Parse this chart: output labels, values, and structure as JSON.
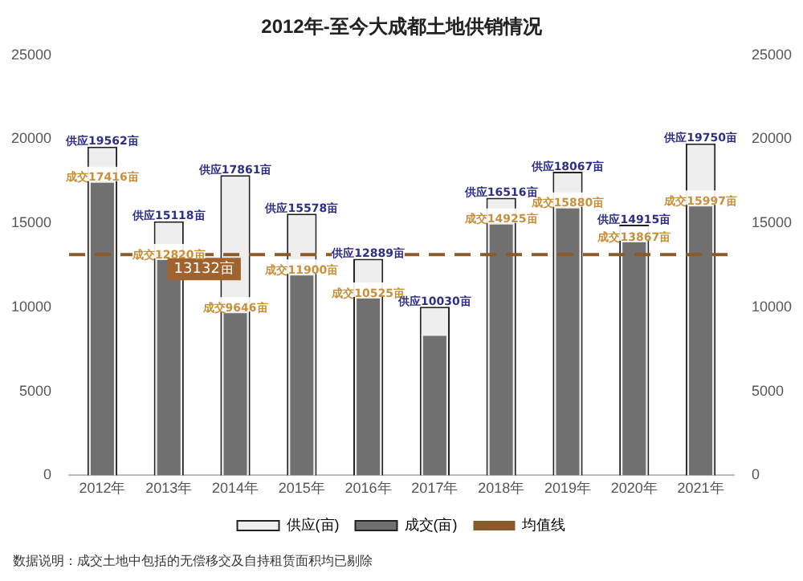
{
  "chart_data": {
    "type": "bar",
    "title": "2012年-至今大成都土地供销情况",
    "categories": [
      "2012年",
      "2013年",
      "2014年",
      "2015年",
      "2016年",
      "2017年",
      "2018年",
      "2019年",
      "2020年",
      "2021年"
    ],
    "series": [
      {
        "name": "供应(亩)",
        "color": "#eeeeee",
        "values": [
          19562,
          15118,
          17861,
          15578,
          12889,
          10030,
          16516,
          18067,
          14915,
          19750
        ],
        "value_labels": [
          "供应19562亩",
          "供应15118亩",
          "供应17861亩",
          "供应15578亩",
          "供应12889亩",
          "供应10030亩",
          "供应16516亩",
          "供应18067亩",
          "供应14915亩",
          "供应19750亩"
        ]
      },
      {
        "name": "成交(亩)",
        "color": "#707070",
        "values": [
          17416,
          12820,
          9646,
          11900,
          10525,
          8300,
          14925,
          15880,
          13867,
          15997
        ],
        "value_labels": [
          "成交17416亩",
          "成交12820亩",
          "成交9646亩",
          "成交11900亩",
          "成交10525亩",
          null,
          "成交14925亩",
          "成交15880亩",
          "成交13867亩",
          "成交15997亩"
        ]
      }
    ],
    "ylim": [
      0,
      25000
    ],
    "yticks": [
      0,
      5000,
      10000,
      15000,
      20000,
      25000
    ],
    "y2lim": [
      0,
      25000
    ],
    "y2ticks": [
      0,
      5000,
      10000,
      15000,
      20000,
      25000
    ],
    "ref_lines": [
      {
        "axis": "y",
        "value": 13132,
        "label": "均值线",
        "color": "#8b5a2b",
        "line_style": "dashed"
      }
    ],
    "annotations": [
      {
        "text": "13132亩",
        "x": "2013年",
        "y": 13132
      },
      "数据说明：成交土地中包括的无偿移交及自持租赁面积均已剔除"
    ],
    "legend": "bottom",
    "grid": false
  }
}
